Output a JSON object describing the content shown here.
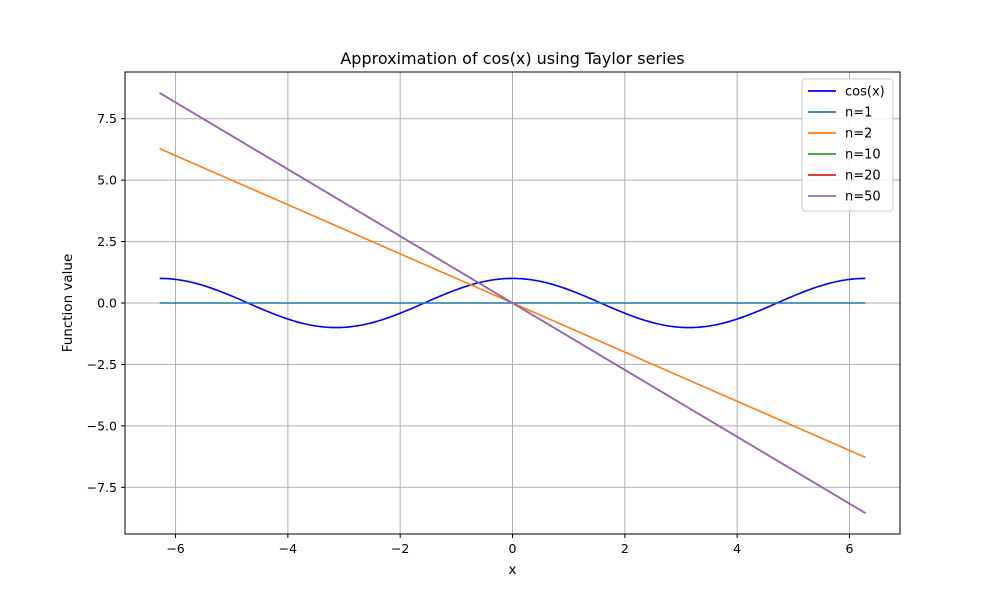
{
  "chart_data": {
    "type": "line",
    "title": "Approximation of cos(x) using Taylor series",
    "xlabel": "x",
    "ylabel": "Function value",
    "xlim": [
      -6.9,
      6.9
    ],
    "ylim": [
      -9.4,
      9.4
    ],
    "x_range": [
      -6.2832,
      6.2832
    ],
    "x_ticks": [
      -6,
      -4,
      -2,
      0,
      2,
      4,
      6
    ],
    "x_tick_labels": [
      "−6",
      "−4",
      "−2",
      "0",
      "2",
      "4",
      "6"
    ],
    "y_ticks": [
      -7.5,
      -5.0,
      -2.5,
      0.0,
      2.5,
      5.0,
      7.5
    ],
    "y_tick_labels": [
      "−7.5",
      "−5.0",
      "−2.5",
      "0.0",
      "2.5",
      "5.0",
      "7.5"
    ],
    "grid": true,
    "legend": "top-right",
    "series": [
      {
        "name": "cos(x)",
        "color": "#0000ff",
        "curve": "cos",
        "x": [
          -6.2832,
          6.2832
        ],
        "y": [
          1.0,
          1.0
        ]
      },
      {
        "name": "n=1",
        "color": "#1f77b4",
        "x": [
          -6.2832,
          6.2832
        ],
        "y": [
          0.0,
          0.0
        ]
      },
      {
        "name": "n=2",
        "color": "#ff7f0e",
        "x": [
          -6.2832,
          6.2832
        ],
        "y": [
          6.2832,
          -6.2832
        ]
      },
      {
        "name": "n=10",
        "color": "#2ca02c",
        "x": [
          -6.2832,
          6.2832
        ],
        "y": [
          8.55,
          -8.55
        ]
      },
      {
        "name": "n=20",
        "color": "#d62728",
        "x": [
          -6.2832,
          6.2832
        ],
        "y": [
          8.55,
          -8.55
        ]
      },
      {
        "name": "n=50",
        "color": "#9467bd",
        "x": [
          -6.2832,
          6.2832
        ],
        "y": [
          8.55,
          -8.55
        ]
      }
    ]
  }
}
